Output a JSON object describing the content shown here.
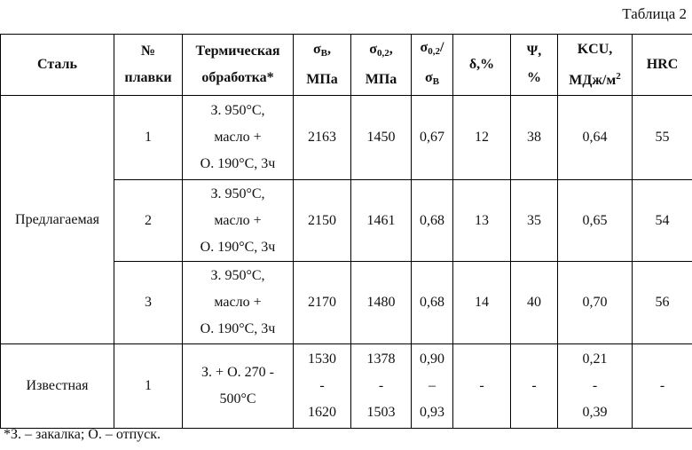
{
  "caption": "Таблица 2",
  "header": [
    [
      [
        "Сталь"
      ]
    ],
    [
      [
        "№"
      ],
      [
        "плавки"
      ]
    ],
    [
      [
        "Термическая"
      ],
      [
        "обработка*"
      ]
    ],
    [
      [
        "σ",
        {
          "sub": "В"
        },
        ","
      ],
      [
        "МПа"
      ]
    ],
    [
      [
        "σ",
        {
          "sub": "0,2"
        },
        ","
      ],
      [
        "МПа"
      ]
    ],
    [
      [
        "σ",
        {
          "sub": "0,2"
        },
        "/"
      ],
      [
        "σ",
        {
          "sub": "В"
        }
      ]
    ],
    [
      [
        "δ,%"
      ]
    ],
    [
      [
        "Ψ,"
      ],
      [
        "%"
      ]
    ],
    [
      [
        "KCU,"
      ],
      [
        "МДж/м",
        {
          "sup": "2"
        }
      ]
    ],
    [
      [
        "HRC"
      ]
    ]
  ],
  "groups": [
    {
      "steel": "Предлагаемая",
      "rows": [
        [
          "1",
          [
            "З. 950°С,",
            "масло +",
            "О. 190°С, 3ч"
          ],
          "2163",
          "1450",
          "0,67",
          "12",
          "38",
          "0,64",
          "55"
        ],
        [
          "2",
          [
            "З. 950°С,",
            "масло +",
            "О. 190°С, 3ч"
          ],
          "2150",
          "1461",
          "0,68",
          "13",
          "35",
          "0,65",
          "54"
        ],
        [
          "3",
          [
            "З. 950°С,",
            "масло +",
            "О. 190°С, 3ч"
          ],
          "2170",
          "1480",
          "0,68",
          "14",
          "40",
          "0,70",
          "56"
        ]
      ]
    },
    {
      "steel": "Известная",
      "rows": [
        [
          "1",
          [
            "З. + О. 270 -",
            "500°С"
          ],
          [
            "1530",
            "-",
            "1620"
          ],
          [
            "1378",
            "-",
            "1503"
          ],
          [
            "0,90",
            "–",
            "0,93"
          ],
          "-",
          "-",
          [
            "0,21",
            "-",
            "0,39"
          ],
          "-"
        ]
      ]
    }
  ],
  "footnote": "*З. – закалка; О. – отпуск."
}
